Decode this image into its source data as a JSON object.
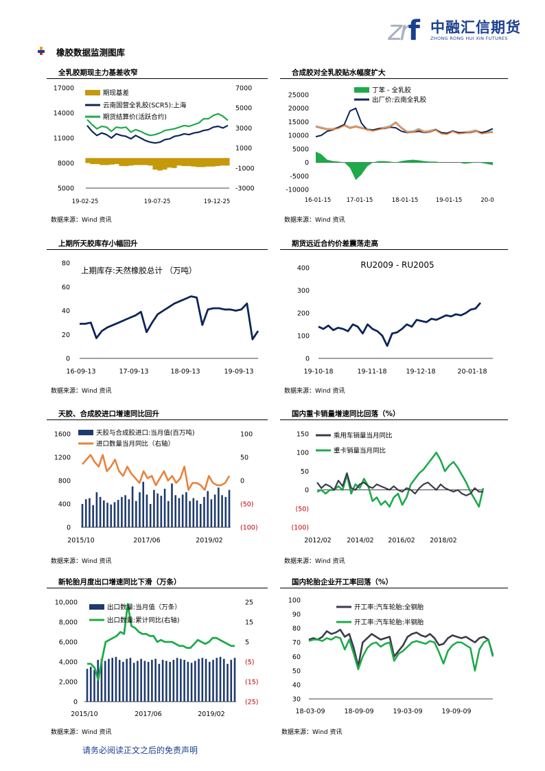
{
  "header": {
    "logo_cn": "中融汇信期货",
    "logo_en": "ZHONG RONG HUI XIN FUTURES",
    "section_title": "橡胶数据监测图库"
  },
  "footer": {
    "disclaimer": "请务必阅读正文之后的免责声明"
  },
  "colors": {
    "navy": "#0b2559",
    "green": "#1eaa4a",
    "gold": "#c49a0a",
    "orange": "#e8823a",
    "gray": "#b4b4b4",
    "dark": "#3a3a4a",
    "bar": "#1e3a6e"
  },
  "charts": [
    {
      "title": "全乳胶期现主力基差收窄",
      "source": "数据来源：Wind 资讯",
      "chart_data": {
        "type": "line",
        "x_ticks": [
          "19-02-25",
          "19-07-25",
          "19-12-25"
        ],
        "y_left_ticks": [
          "17000",
          "14000",
          "11000",
          "8000",
          "5000"
        ],
        "y_right_ticks": [
          "7000",
          "5000",
          "3000",
          "1000",
          "-1000",
          "-3000"
        ],
        "ylim_left": [
          5000,
          17000
        ],
        "ylim_right": [
          -3000,
          7000
        ],
        "legend": [
          "期现基差",
          "云南国营全乳胶(SCR5):上海",
          "期货结算价(活跃合约)"
        ],
        "series": [
          {
            "name": "期现基差",
            "axis": "right",
            "type": "bar",
            "values": [
              -500,
              -600,
              -600,
              -700,
              -700,
              -650,
              -600,
              -800,
              -800,
              -750,
              -700,
              -700,
              -700,
              -750,
              -1150,
              -1250,
              -1150,
              -950,
              -1000,
              -750,
              -800,
              -800,
              -850,
              -900,
              -900,
              -850,
              -850,
              -800,
              -750,
              -750
            ]
          },
          {
            "name": "云南国营全乳胶(SCR5):上海",
            "axis": "left",
            "values": [
              12500,
              11800,
              11300,
              11600,
              11400,
              11000,
              11500,
              11300,
              11200,
              10900,
              11300,
              11000,
              10700,
              10500,
              10400,
              10500,
              10800,
              10900,
              11200,
              11300,
              11500,
              11400,
              11600,
              11700,
              11900,
              12000,
              12300,
              12400,
              12200,
              12500
            ]
          },
          {
            "name": "期货结算价(活跃合约)",
            "axis": "left",
            "values": [
              13200,
              12600,
              12100,
              12400,
              12300,
              11800,
              12300,
              12200,
              12300,
              11700,
              12000,
              11800,
              11500,
              11300,
              11400,
              11600,
              11900,
              12000,
              12100,
              12300,
              12500,
              12400,
              12600,
              12800,
              13300,
              13300,
              13700,
              13900,
              13600,
              13100
            ]
          }
        ]
      }
    },
    {
      "title": "合成胶对全乳胶贴水幅度扩大",
      "source": "数据来源：Wind 资讯",
      "chart_data": {
        "type": "line",
        "x_ticks": [
          "16-01-15",
          "17-01-15",
          "18-01-15",
          "19-01-15",
          "20-0"
        ],
        "y_ticks": [
          "25000",
          "20000",
          "15000",
          "10000",
          "5000",
          "0",
          "-5000",
          "-10000"
        ],
        "ylim": [
          -10000,
          25000
        ],
        "legend": [
          "丁苯 - 全乳胶",
          "出厂价:云南全乳胶"
        ],
        "series": [
          {
            "name": "丁苯 - 全乳胶",
            "type": "area",
            "values": [
              4000,
              3000,
              1000,
              500,
              300,
              0,
              -2000,
              -6500,
              -4500,
              -1500,
              0,
              500,
              500,
              300,
              0,
              500,
              800,
              1000,
              800,
              500,
              300,
              300,
              0,
              0,
              0,
              0,
              -500,
              -300,
              0,
              -200,
              -600,
              -1000
            ]
          },
          {
            "name": "出厂价:云南全乳胶",
            "values": [
              9500,
              10000,
              11500,
              12000,
              13000,
              14000,
              19000,
              20000,
              14500,
              12000,
              12000,
              12500,
              12500,
              13000,
              12800,
              11500,
              11000,
              11200,
              11500,
              11000,
              11300,
              12000,
              11000,
              10800,
              11500,
              11000,
              11000,
              11000,
              11500,
              11000,
              11500,
              12500
            ]
          },
          {
            "name": "丁苯",
            "values": [
              13500,
              13000,
              12500,
              12500,
              13000,
              14000,
              13000,
              13500,
              13000,
              12500,
              12000,
              12500,
              13000,
              13500,
              15000,
              13000,
              11500,
              11500,
              12500,
              11500,
              11800,
              12300,
              11000,
              10800,
              11800,
              11000,
              11200,
              11500,
              12000,
              11000,
              11300,
              11500
            ]
          }
        ]
      }
    },
    {
      "title": "上期所天胶库存小幅回升",
      "source": "数据来源：Wind 资讯",
      "chart_data": {
        "type": "line",
        "x_ticks": [
          "16-09-13",
          "17-09-13",
          "18-09-13",
          "19-09-13"
        ],
        "y_ticks": [
          "80",
          "60",
          "40",
          "20",
          "0"
        ],
        "ylim": [
          0,
          80
        ],
        "series": [
          {
            "name": "上期库存:天然橡胶总计 （万吨）",
            "values": [
              29,
              29,
              30,
              17,
              23,
              26,
              28,
              30,
              32,
              34,
              36,
              39,
              22,
              30,
              37,
              40,
              43,
              46,
              48,
              50,
              52,
              51,
              28,
              41,
              42,
              42,
              41,
              41,
              40,
              41,
              46,
              16,
              23
            ]
          }
        ]
      }
    },
    {
      "title": "期货远近合约价差震荡走高",
      "source": "数据来源：Wind 资讯",
      "chart_data": {
        "type": "line",
        "x_ticks": [
          "19-10-18",
          "19-11-18",
          "19-12-18",
          "20-01-18"
        ],
        "y_ticks": [
          "400",
          "300",
          "200",
          "100",
          "0"
        ],
        "ylim": [
          0,
          400
        ],
        "series": [
          {
            "name": "RU2009 - RU2005",
            "values": [
              140,
              130,
              145,
              125,
              135,
              130,
              120,
              150,
              140,
              110,
              150,
              130,
              120,
              100,
              55,
              110,
              115,
              130,
              150,
              140,
              170,
              165,
              160,
              175,
              170,
              180,
              190,
              185,
              195,
              190,
              200,
              215,
              220,
              245
            ]
          }
        ]
      }
    },
    {
      "title": "天胶、合成胶进口增速同比回升",
      "source": "数据来源：Wind 资讯",
      "chart_data": {
        "type": "bar",
        "x_ticks": [
          "2015/10",
          "2017/06",
          "2019/02"
        ],
        "y_left_ticks": [
          "1600",
          "1200",
          "800",
          "400",
          "0"
        ],
        "y_right_ticks": [
          "100",
          "50",
          "0",
          "(50)",
          "(100)"
        ],
        "ylim_left": [
          0,
          1600
        ],
        "ylim_right": [
          -100,
          100
        ],
        "legend": [
          "天胶与合成胶进口:当月值(百万吨)",
          "进口数量当月同比（右轴）"
        ],
        "series": [
          {
            "name": "天胶与合成胶进口:当月值(百万吨)",
            "axis": "left",
            "type": "bar",
            "values": [
              400,
              480,
              500,
              380,
              600,
              520,
              460,
              420,
              390,
              430,
              470,
              520,
              550,
              480,
              700,
              450,
              600,
              780,
              560,
              400,
              640,
              580,
              540,
              660,
              450,
              750,
              550,
              500,
              560,
              600,
              450,
              500,
              460,
              400,
              520,
              620,
              480,
              560,
              680,
              550,
              520,
              640
            ]
          },
          {
            "name": "进口数量当月同比（右轴）",
            "axis": "right",
            "values": [
              35,
              45,
              55,
              40,
              30,
              55,
              20,
              30,
              45,
              20,
              10,
              30,
              15,
              5,
              -5,
              20,
              5,
              10,
              -10,
              5,
              20,
              0,
              10,
              -5,
              5,
              30,
              -20,
              -5,
              -5,
              -10,
              -20,
              10,
              -5,
              -10,
              -10,
              -5,
              10
            ]
          }
        ]
      }
    },
    {
      "title": "国内重卡销量增速同比回落（%）",
      "source": "数据来源：Wind 资讯",
      "chart_data": {
        "type": "line",
        "x_ticks": [
          "2012/02",
          "2014/02",
          "2016/02",
          "2018/02"
        ],
        "y_ticks": [
          "150",
          "100",
          "50",
          "0",
          "(50)",
          "(100)"
        ],
        "ylim": [
          -100,
          150
        ],
        "legend": [
          "乘用车销量当月同比",
          "重卡销量当月同比"
        ],
        "series": [
          {
            "name": "乘用车销量当月同比",
            "values": [
              20,
              5,
              15,
              10,
              0,
              25,
              10,
              45,
              5,
              0,
              15,
              20,
              10,
              5,
              15,
              10,
              5,
              0,
              10,
              0,
              -5,
              5,
              0,
              -10,
              5,
              15,
              20,
              10,
              0,
              15,
              5,
              0,
              -5,
              0,
              -10,
              -15,
              -10,
              5,
              -5,
              -5
            ]
          },
          {
            "name": "重卡销量当月同比",
            "values": [
              -5,
              0,
              -10,
              0,
              0,
              10,
              0,
              40,
              -10,
              15,
              5,
              30,
              10,
              -30,
              -20,
              -40,
              -30,
              -45,
              -20,
              -10,
              -40,
              -20,
              15,
              30,
              45,
              55,
              70,
              85,
              100,
              80,
              50,
              65,
              75,
              60,
              40,
              20,
              -5,
              -25,
              -45,
              5
            ]
          }
        ]
      }
    },
    {
      "title": "新轮胎月度出口增速同比下滑（万条）",
      "source": "数据来源：Wind 资讯",
      "chart_data": {
        "type": "bar",
        "x_ticks": [
          "2015/10",
          "2017/06",
          "2019/02"
        ],
        "y_left_ticks": [
          "10,000",
          "8,000",
          "6,000",
          "4,000",
          "2,000",
          "0"
        ],
        "y_right_ticks": [
          "25",
          "15",
          "5",
          "(5)",
          "(15)",
          "(25)"
        ],
        "ylim_left": [
          0,
          10000
        ],
        "ylim_right": [
          -25,
          25
        ],
        "legend": [
          "出口数量:当月值（万条）",
          "出口数量:累计同比(右轴)"
        ],
        "series": [
          {
            "name": "出口数量:当月值（万条）",
            "axis": "left",
            "type": "bar",
            "values": [
              3300,
              3500,
              3200,
              4200,
              4300,
              4100,
              4300,
              4400,
              4500,
              4200,
              4000,
              4300,
              4400,
              3900,
              4100,
              4300,
              4100,
              4000,
              4200,
              4300,
              3800,
              4200,
              4100,
              4000,
              4200,
              4400,
              4300,
              4200,
              4000,
              3900,
              4100,
              4300,
              4400,
              4300,
              4000,
              4200,
              4400,
              4500,
              4300,
              3800,
              4200,
              4400
            ]
          },
          {
            "name": "出口数量:累计同比(右轴)",
            "axis": "right",
            "values": [
              -6,
              -6,
              -8,
              -14,
              -4,
              5,
              6,
              7,
              8,
              10,
              9,
              24,
              13,
              12,
              10,
              9,
              9,
              8,
              8,
              5,
              6,
              5,
              5,
              5,
              4,
              3,
              3,
              2,
              2,
              4,
              6,
              5,
              4,
              5,
              7,
              7,
              6,
              5,
              4,
              3,
              3
            ]
          }
        ]
      }
    },
    {
      "title": "国内轮胎企业开工率回落（%）",
      "source": "数据来源：Wind 资讯",
      "chart_data": {
        "type": "line",
        "x_ticks": [
          "18-03-09",
          "18-09-09",
          "19-03-09",
          "19-09-09"
        ],
        "y_ticks": [
          "100",
          "90",
          "80",
          "70",
          "60",
          "50",
          "40",
          "30"
        ],
        "ylim": [
          30,
          100
        ],
        "legend": [
          "开工率:汽车轮胎:全钢胎",
          "开工率:汽车轮胎:半钢胎"
        ],
        "series": [
          {
            "name": "开工率:汽车轮胎:全钢胎",
            "values": [
              72,
              73,
              72,
              74,
              78,
              76,
              77,
              79,
              74,
              76,
              66,
              53,
              70,
              73,
              76,
              74,
              72,
              73,
              74,
              60,
              64,
              68,
              74,
              76,
              77,
              75,
              74,
              76,
              73,
              68,
              69,
              73,
              75,
              74,
              73,
              74,
              72,
              70,
              73,
              74,
              72,
              61
            ]
          },
          {
            "name": "开工率:汽车轮胎:半钢胎",
            "values": [
              71,
              72,
              72,
              71,
              73,
              72,
              74,
              73,
              65,
              72,
              62,
              51,
              60,
              66,
              69,
              70,
              67,
              69,
              70,
              57,
              62,
              64,
              67,
              70,
              71,
              70,
              69,
              71,
              70,
              63,
              55,
              64,
              68,
              70,
              70,
              68,
              66,
              50,
              65,
              70,
              72,
              60
            ]
          }
        ]
      }
    }
  ]
}
